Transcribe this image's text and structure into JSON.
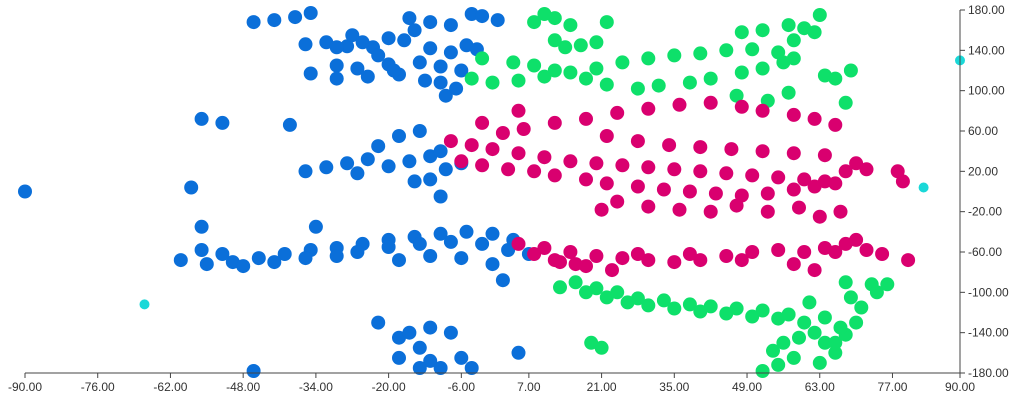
{
  "chart_data": {
    "type": "scatter",
    "title": "",
    "xlabel": "",
    "ylabel": "",
    "xlim": [
      -90,
      90
    ],
    "ylim": [
      -180,
      180
    ],
    "x_ticks": [
      -90,
      -76,
      -62,
      -48,
      -34,
      -20,
      -6,
      7,
      21,
      35,
      49,
      63,
      77,
      90
    ],
    "x_tick_labels": [
      "-90.00",
      "-76.00",
      "-62.00",
      "-48.00",
      "-34.00",
      "-20.00",
      "-6.00",
      "7.00",
      "21.00",
      "35.00",
      "49.00",
      "63.00",
      "77.00",
      "90.00"
    ],
    "y_ticks": [
      180,
      140,
      100,
      60,
      20,
      -20,
      -60,
      -100,
      -140,
      -180
    ],
    "y_tick_labels": [
      "180.00",
      "140.00",
      "100.00",
      "60.00",
      "20.00",
      "-20.00",
      "-60.00",
      "-100.00",
      "-140.00",
      "-180.00"
    ],
    "y_axis_position": "right",
    "grid": false,
    "legend": "none",
    "colors": {
      "blue": "#0b6fd9",
      "green": "#0ee06a",
      "magenta": "#d9006f",
      "cyan": "#1ad8d8"
    },
    "series": [
      {
        "color_key": "blue",
        "points": [
          [
            -23,
            143
          ],
          [
            -20,
            152
          ],
          [
            -17,
            150
          ],
          [
            -12,
            142
          ],
          [
            -8,
            138
          ],
          [
            -5,
            145
          ],
          [
            -3,
            141
          ],
          [
            -28,
            144
          ],
          [
            -32,
            148
          ],
          [
            -36,
            146
          ],
          [
            -30,
            125
          ],
          [
            -26,
            122
          ],
          [
            -20,
            126
          ],
          [
            -14,
            128
          ],
          [
            -10,
            124
          ],
          [
            -6,
            120
          ],
          [
            -35,
            117
          ],
          [
            -30,
            112
          ],
          [
            -24,
            114
          ],
          [
            -18,
            116
          ],
          [
            -42,
            170
          ],
          [
            -38,
            173
          ],
          [
            -35,
            177
          ],
          [
            -46,
            168
          ],
          [
            -16,
            172
          ],
          [
            -12,
            168
          ],
          [
            -8,
            165
          ],
          [
            -4,
            176
          ],
          [
            -2,
            174
          ],
          [
            1,
            170
          ],
          [
            -30,
            143
          ],
          [
            -27,
            155
          ],
          [
            -25,
            148
          ],
          [
            -15,
            160
          ],
          [
            -22,
            135
          ],
          [
            -19,
            120
          ],
          [
            -13,
            110
          ],
          [
            -9,
            95
          ],
          [
            -7,
            102
          ],
          [
            -10,
            108
          ],
          [
            -56,
            72
          ],
          [
            -52,
            68
          ],
          [
            -39,
            66
          ],
          [
            -28,
            28
          ],
          [
            -24,
            32
          ],
          [
            -20,
            25
          ],
          [
            -16,
            30
          ],
          [
            -12,
            35
          ],
          [
            -9,
            22
          ],
          [
            -6,
            28
          ],
          [
            -36,
            20
          ],
          [
            -32,
            24
          ],
          [
            -26,
            18
          ],
          [
            -22,
            45
          ],
          [
            -18,
            55
          ],
          [
            -14,
            60
          ],
          [
            -10,
            40
          ],
          [
            -15,
            10
          ],
          [
            -10,
            -5
          ],
          [
            -12,
            12
          ],
          [
            -60,
            -68
          ],
          [
            -55,
            -72
          ],
          [
            -50,
            -70
          ],
          [
            -45,
            -66
          ],
          [
            -40,
            -62
          ],
          [
            -35,
            -58
          ],
          [
            -30,
            -56
          ],
          [
            -25,
            -52
          ],
          [
            -20,
            -48
          ],
          [
            -15,
            -45
          ],
          [
            -10,
            -42
          ],
          [
            -5,
            -40
          ],
          [
            0,
            -42
          ],
          [
            4,
            -48
          ],
          [
            -42,
            -70
          ],
          [
            -36,
            -66
          ],
          [
            -30,
            -64
          ],
          [
            -26,
            -60
          ],
          [
            -20,
            -55
          ],
          [
            -14,
            -52
          ],
          [
            -8,
            -50
          ],
          [
            -2,
            -52
          ],
          [
            3,
            -58
          ],
          [
            7,
            -62
          ],
          [
            -48,
            -74
          ],
          [
            -18,
            -68
          ],
          [
            -12,
            -64
          ],
          [
            -6,
            -66
          ],
          [
            0,
            -72
          ],
          [
            2,
            -88
          ],
          [
            -56,
            -35
          ],
          [
            -56,
            -58
          ],
          [
            -52,
            -62
          ],
          [
            -34,
            -35
          ],
          [
            -90,
            0
          ],
          [
            -58,
            4
          ],
          [
            -22,
            -130
          ],
          [
            -18,
            -145
          ],
          [
            -14,
            -155
          ],
          [
            -12,
            -168
          ],
          [
            -10,
            -175
          ],
          [
            -14,
            -175
          ],
          [
            -18,
            -165
          ],
          [
            -16,
            -140
          ],
          [
            -8,
            -140
          ],
          [
            -6,
            -165
          ],
          [
            -4,
            -175
          ],
          [
            -46,
            -178
          ],
          [
            5,
            -160
          ],
          [
            -12,
            -135
          ]
        ]
      },
      {
        "color_key": "green",
        "points": [
          [
            -4,
            112
          ],
          [
            0,
            108
          ],
          [
            5,
            110
          ],
          [
            10,
            114
          ],
          [
            15,
            118
          ],
          [
            20,
            122
          ],
          [
            25,
            128
          ],
          [
            30,
            132
          ],
          [
            35,
            135
          ],
          [
            40,
            137
          ],
          [
            45,
            140
          ],
          [
            50,
            141
          ],
          [
            55,
            138
          ],
          [
            -2,
            132
          ],
          [
            4,
            128
          ],
          [
            8,
            125
          ],
          [
            12,
            120
          ],
          [
            18,
            112
          ],
          [
            22,
            106
          ],
          [
            28,
            102
          ],
          [
            32,
            105
          ],
          [
            38,
            108
          ],
          [
            42,
            112
          ],
          [
            48,
            118
          ],
          [
            52,
            122
          ],
          [
            56,
            128
          ],
          [
            58,
            132
          ],
          [
            47,
            95
          ],
          [
            53,
            90
          ],
          [
            57,
            98
          ],
          [
            12,
            172
          ],
          [
            15,
            165
          ],
          [
            22,
            168
          ],
          [
            20,
            148
          ],
          [
            17,
            145
          ],
          [
            48,
            158
          ],
          [
            52,
            160
          ],
          [
            57,
            165
          ],
          [
            60,
            162
          ],
          [
            63,
            175
          ],
          [
            62,
            158
          ],
          [
            58,
            150
          ],
          [
            64,
            115
          ],
          [
            66,
            112
          ],
          [
            68,
            88
          ],
          [
            69,
            120
          ],
          [
            12,
            150
          ],
          [
            14,
            143
          ],
          [
            8,
            168
          ],
          [
            10,
            176
          ],
          [
            13,
            -95
          ],
          [
            18,
            -100
          ],
          [
            22,
            -105
          ],
          [
            26,
            -110
          ],
          [
            30,
            -113
          ],
          [
            35,
            -116
          ],
          [
            40,
            -119
          ],
          [
            45,
            -121
          ],
          [
            50,
            -124
          ],
          [
            55,
            -126
          ],
          [
            16,
            -90
          ],
          [
            20,
            -96
          ],
          [
            24,
            -100
          ],
          [
            28,
            -106
          ],
          [
            33,
            -108
          ],
          [
            38,
            -112
          ],
          [
            42,
            -114
          ],
          [
            47,
            -116
          ],
          [
            52,
            -118
          ],
          [
            57,
            -122
          ],
          [
            60,
            -130
          ],
          [
            62,
            -140
          ],
          [
            64,
            -150
          ],
          [
            66,
            -160
          ],
          [
            63,
            -170
          ],
          [
            58,
            -165
          ],
          [
            55,
            -172
          ],
          [
            52,
            -178
          ],
          [
            66,
            -150
          ],
          [
            68,
            -142
          ],
          [
            70,
            -130
          ],
          [
            71,
            -115
          ],
          [
            69,
            -105
          ],
          [
            68,
            -90
          ],
          [
            73,
            -92
          ],
          [
            74,
            -100
          ],
          [
            76,
            -92
          ],
          [
            21,
            -155
          ],
          [
            19,
            -150
          ],
          [
            61,
            -110
          ],
          [
            64,
            -125
          ],
          [
            67,
            -135
          ],
          [
            59,
            -145
          ],
          [
            56,
            -150
          ],
          [
            54,
            -158
          ]
        ]
      },
      {
        "color_key": "magenta",
        "points": [
          [
            -8,
            50
          ],
          [
            -4,
            46
          ],
          [
            0,
            42
          ],
          [
            5,
            38
          ],
          [
            10,
            34
          ],
          [
            15,
            30
          ],
          [
            20,
            28
          ],
          [
            25,
            26
          ],
          [
            30,
            24
          ],
          [
            35,
            22
          ],
          [
            40,
            20
          ],
          [
            45,
            18
          ],
          [
            50,
            16
          ],
          [
            55,
            14
          ],
          [
            60,
            12
          ],
          [
            64,
            10
          ],
          [
            68,
            20
          ],
          [
            -6,
            30
          ],
          [
            -2,
            26
          ],
          [
            3,
            22
          ],
          [
            8,
            20
          ],
          [
            12,
            16
          ],
          [
            18,
            12
          ],
          [
            22,
            8
          ],
          [
            28,
            5
          ],
          [
            33,
            2
          ],
          [
            38,
            0
          ],
          [
            43,
            -2
          ],
          [
            48,
            -4
          ],
          [
            53,
            -2
          ],
          [
            58,
            2
          ],
          [
            62,
            5
          ],
          [
            66,
            8
          ],
          [
            6,
            62
          ],
          [
            12,
            68
          ],
          [
            18,
            72
          ],
          [
            24,
            78
          ],
          [
            30,
            82
          ],
          [
            36,
            86
          ],
          [
            42,
            88
          ],
          [
            48,
            84
          ],
          [
            52,
            80
          ],
          [
            58,
            76
          ],
          [
            62,
            72
          ],
          [
            66,
            66
          ],
          [
            22,
            55
          ],
          [
            28,
            50
          ],
          [
            34,
            46
          ],
          [
            40,
            44
          ],
          [
            46,
            42
          ],
          [
            52,
            40
          ],
          [
            58,
            38
          ],
          [
            64,
            36
          ],
          [
            70,
            28
          ],
          [
            72,
            22
          ],
          [
            78,
            20
          ],
          [
            79,
            10
          ],
          [
            5,
            80
          ],
          [
            -2,
            68
          ],
          [
            2,
            58
          ],
          [
            21,
            -18
          ],
          [
            24,
            -10
          ],
          [
            30,
            -15
          ],
          [
            36,
            -18
          ],
          [
            42,
            -20
          ],
          [
            47,
            -14
          ],
          [
            53,
            -20
          ],
          [
            59,
            -16
          ],
          [
            63,
            -25
          ],
          [
            67,
            -20
          ],
          [
            5,
            -52
          ],
          [
            10,
            -56
          ],
          [
            15,
            -60
          ],
          [
            20,
            -64
          ],
          [
            25,
            -66
          ],
          [
            30,
            -68
          ],
          [
            35,
            -70
          ],
          [
            40,
            -68
          ],
          [
            45,
            -64
          ],
          [
            50,
            -60
          ],
          [
            55,
            -58
          ],
          [
            60,
            -60
          ],
          [
            64,
            -56
          ],
          [
            68,
            -52
          ],
          [
            72,
            -58
          ],
          [
            75,
            -62
          ],
          [
            80,
            -68
          ],
          [
            13,
            -70
          ],
          [
            18,
            -74
          ],
          [
            23,
            -78
          ],
          [
            8,
            -62
          ],
          [
            12,
            -68
          ],
          [
            16,
            -72
          ],
          [
            28,
            -62
          ],
          [
            38,
            -62
          ],
          [
            48,
            -68
          ],
          [
            58,
            -72
          ],
          [
            62,
            -78
          ],
          [
            66,
            -60
          ],
          [
            70,
            -48
          ]
        ]
      },
      {
        "color_key": "cyan",
        "points": [
          [
            -67,
            -112
          ],
          [
            83,
            4
          ],
          [
            90,
            130
          ]
        ]
      }
    ]
  }
}
